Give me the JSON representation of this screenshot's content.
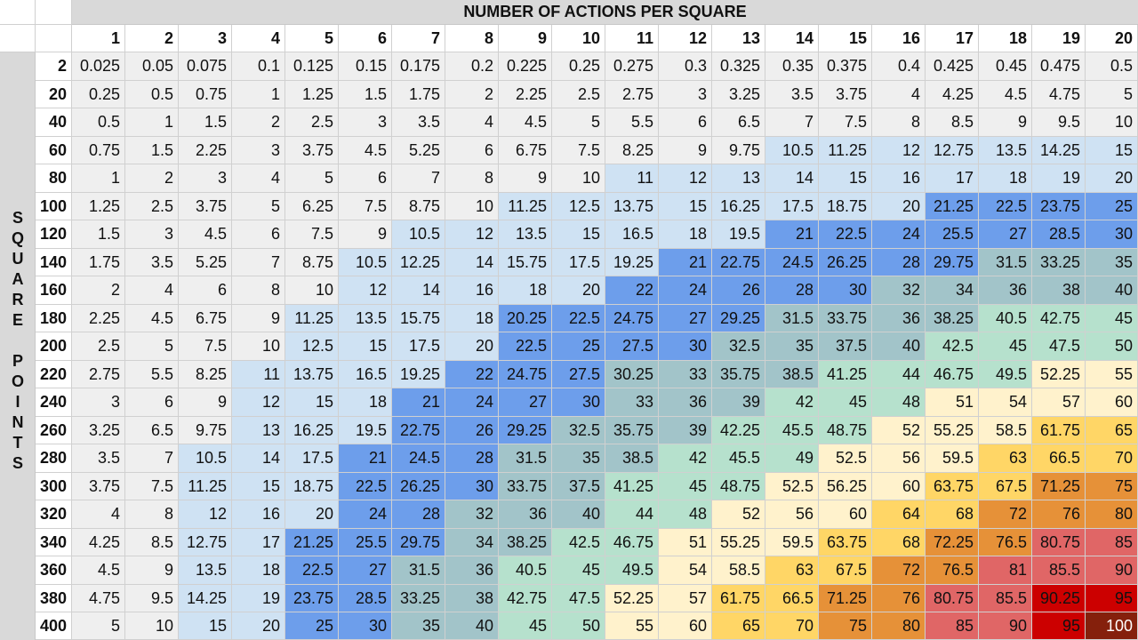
{
  "title": "NUMBER OF ACTIONS PER SQUARE",
  "side_label": [
    "S",
    "Q",
    "U",
    "A",
    "R",
    "E",
    "",
    "P",
    "O",
    "I",
    "N",
    "T",
    "S"
  ],
  "columns": [
    1,
    2,
    3,
    4,
    5,
    6,
    7,
    8,
    9,
    10,
    11,
    12,
    13,
    14,
    15,
    16,
    17,
    18,
    19,
    20
  ],
  "rows": [
    {
      "label": "2",
      "values": [
        "0.025",
        "0.05",
        "0.075",
        "0.1",
        "0.125",
        "0.15",
        "0.175",
        "0.2",
        "0.225",
        "0.25",
        "0.275",
        "0.3",
        "0.325",
        "0.35",
        "0.375",
        "0.4",
        "0.425",
        "0.45",
        "0.475",
        "0.5"
      ]
    },
    {
      "label": "20",
      "values": [
        "0.25",
        "0.5",
        "0.75",
        "1",
        "1.25",
        "1.5",
        "1.75",
        "2",
        "2.25",
        "2.5",
        "2.75",
        "3",
        "3.25",
        "3.5",
        "3.75",
        "4",
        "4.25",
        "4.5",
        "4.75",
        "5"
      ]
    },
    {
      "label": "40",
      "values": [
        "0.5",
        "1",
        "1.5",
        "2",
        "2.5",
        "3",
        "3.5",
        "4",
        "4.5",
        "5",
        "5.5",
        "6",
        "6.5",
        "7",
        "7.5",
        "8",
        "8.5",
        "9",
        "9.5",
        "10"
      ]
    },
    {
      "label": "60",
      "values": [
        "0.75",
        "1.5",
        "2.25",
        "3",
        "3.75",
        "4.5",
        "5.25",
        "6",
        "6.75",
        "7.5",
        "8.25",
        "9",
        "9.75",
        "10.5",
        "11.25",
        "12",
        "12.75",
        "13.5",
        "14.25",
        "15"
      ]
    },
    {
      "label": "80",
      "values": [
        "1",
        "2",
        "3",
        "4",
        "5",
        "6",
        "7",
        "8",
        "9",
        "10",
        "11",
        "12",
        "13",
        "14",
        "15",
        "16",
        "17",
        "18",
        "19",
        "20"
      ]
    },
    {
      "label": "100",
      "values": [
        "1.25",
        "2.5",
        "3.75",
        "5",
        "6.25",
        "7.5",
        "8.75",
        "10",
        "11.25",
        "12.5",
        "13.75",
        "15",
        "16.25",
        "17.5",
        "18.75",
        "20",
        "21.25",
        "22.5",
        "23.75",
        "25"
      ]
    },
    {
      "label": "120",
      "values": [
        "1.5",
        "3",
        "4.5",
        "6",
        "7.5",
        "9",
        "10.5",
        "12",
        "13.5",
        "15",
        "16.5",
        "18",
        "19.5",
        "21",
        "22.5",
        "24",
        "25.5",
        "27",
        "28.5",
        "30"
      ]
    },
    {
      "label": "140",
      "values": [
        "1.75",
        "3.5",
        "5.25",
        "7",
        "8.75",
        "10.5",
        "12.25",
        "14",
        "15.75",
        "17.5",
        "19.25",
        "21",
        "22.75",
        "24.5",
        "26.25",
        "28",
        "29.75",
        "31.5",
        "33.25",
        "35"
      ]
    },
    {
      "label": "160",
      "values": [
        "2",
        "4",
        "6",
        "8",
        "10",
        "12",
        "14",
        "16",
        "18",
        "20",
        "22",
        "24",
        "26",
        "28",
        "30",
        "32",
        "34",
        "36",
        "38",
        "40"
      ]
    },
    {
      "label": "180",
      "values": [
        "2.25",
        "4.5",
        "6.75",
        "9",
        "11.25",
        "13.5",
        "15.75",
        "18",
        "20.25",
        "22.5",
        "24.75",
        "27",
        "29.25",
        "31.5",
        "33.75",
        "36",
        "38.25",
        "40.5",
        "42.75",
        "45"
      ]
    },
    {
      "label": "200",
      "values": [
        "2.5",
        "5",
        "7.5",
        "10",
        "12.5",
        "15",
        "17.5",
        "20",
        "22.5",
        "25",
        "27.5",
        "30",
        "32.5",
        "35",
        "37.5",
        "40",
        "42.5",
        "45",
        "47.5",
        "50"
      ]
    },
    {
      "label": "220",
      "values": [
        "2.75",
        "5.5",
        "8.25",
        "11",
        "13.75",
        "16.5",
        "19.25",
        "22",
        "24.75",
        "27.5",
        "30.25",
        "33",
        "35.75",
        "38.5",
        "41.25",
        "44",
        "46.75",
        "49.5",
        "52.25",
        "55"
      ]
    },
    {
      "label": "240",
      "values": [
        "3",
        "6",
        "9",
        "12",
        "15",
        "18",
        "21",
        "24",
        "27",
        "30",
        "33",
        "36",
        "39",
        "42",
        "45",
        "48",
        "51",
        "54",
        "57",
        "60"
      ]
    },
    {
      "label": "260",
      "values": [
        "3.25",
        "6.5",
        "9.75",
        "13",
        "16.25",
        "19.5",
        "22.75",
        "26",
        "29.25",
        "32.5",
        "35.75",
        "39",
        "42.25",
        "45.5",
        "48.75",
        "52",
        "55.25",
        "58.5",
        "61.75",
        "65"
      ]
    },
    {
      "label": "280",
      "values": [
        "3.5",
        "7",
        "10.5",
        "14",
        "17.5",
        "21",
        "24.5",
        "28",
        "31.5",
        "35",
        "38.5",
        "42",
        "45.5",
        "49",
        "52.5",
        "56",
        "59.5",
        "63",
        "66.5",
        "70"
      ]
    },
    {
      "label": "300",
      "values": [
        "3.75",
        "7.5",
        "11.25",
        "15",
        "18.75",
        "22.5",
        "26.25",
        "30",
        "33.75",
        "37.5",
        "41.25",
        "45",
        "48.75",
        "52.5",
        "56.25",
        "60",
        "63.75",
        "67.5",
        "71.25",
        "75"
      ]
    },
    {
      "label": "320",
      "values": [
        "4",
        "8",
        "12",
        "16",
        "20",
        "24",
        "28",
        "32",
        "36",
        "40",
        "44",
        "48",
        "52",
        "56",
        "60",
        "64",
        "68",
        "72",
        "76",
        "80"
      ]
    },
    {
      "label": "340",
      "values": [
        "4.25",
        "8.5",
        "12.75",
        "17",
        "21.25",
        "25.5",
        "29.75",
        "34",
        "38.25",
        "42.5",
        "46.75",
        "51",
        "55.25",
        "59.5",
        "63.75",
        "68",
        "72.25",
        "76.5",
        "80.75",
        "85"
      ]
    },
    {
      "label": "360",
      "values": [
        "4.5",
        "9",
        "13.5",
        "18",
        "22.5",
        "27",
        "31.5",
        "36",
        "40.5",
        "45",
        "49.5",
        "54",
        "58.5",
        "63",
        "67.5",
        "72",
        "76.5",
        "81",
        "85.5",
        "90"
      ]
    },
    {
      "label": "380",
      "values": [
        "4.75",
        "9.5",
        "14.25",
        "19",
        "23.75",
        "28.5",
        "33.25",
        "38",
        "42.75",
        "47.5",
        "52.25",
        "57",
        "61.75",
        "66.5",
        "71.25",
        "76",
        "80.75",
        "85.5",
        "90.25",
        "95"
      ]
    },
    {
      "label": "400",
      "values": [
        "5",
        "10",
        "15",
        "20",
        "25",
        "30",
        "35",
        "40",
        "45",
        "50",
        "55",
        "60",
        "65",
        "70",
        "75",
        "80",
        "85",
        "90",
        "95",
        "100"
      ]
    }
  ],
  "color_scale": [
    {
      "max": 10,
      "bg": "#efefef",
      "fg": "#111111"
    },
    {
      "max": 20,
      "bg": "#cfe2f3",
      "fg": "#111111"
    },
    {
      "max": 30,
      "bg": "#6d9eeb",
      "fg": "#111111"
    },
    {
      "max": 40,
      "bg": "#a2c4c9",
      "fg": "#111111"
    },
    {
      "max": 50,
      "bg": "#b6e1cd",
      "fg": "#111111"
    },
    {
      "max": 60,
      "bg": "#fff2cc",
      "fg": "#111111"
    },
    {
      "max": 70,
      "bg": "#ffd666",
      "fg": "#111111"
    },
    {
      "max": 80,
      "bg": "#e69138",
      "fg": "#111111"
    },
    {
      "max": 90,
      "bg": "#e06666",
      "fg": "#111111"
    },
    {
      "max": 99.9,
      "bg": "#cc0000",
      "fg": "#111111"
    },
    {
      "max": 1000,
      "bg": "#85200c",
      "fg": "#ffffff"
    }
  ]
}
